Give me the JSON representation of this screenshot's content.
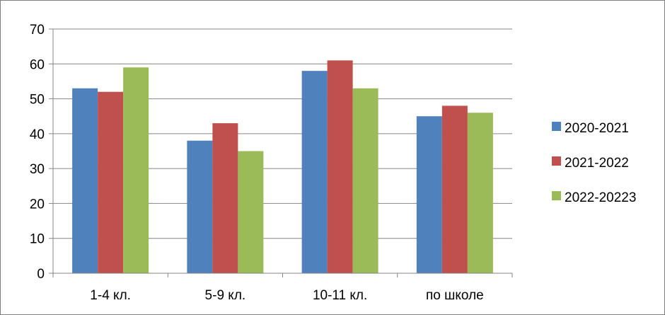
{
  "chart_data": {
    "type": "bar",
    "categories": [
      "1-4 кл.",
      "5-9 кл.",
      "10-11 кл.",
      "по школе"
    ],
    "series": [
      {
        "name": "2020-2021",
        "color": "#4F81BD",
        "values": [
          53,
          38,
          58,
          45
        ]
      },
      {
        "name": "2021-2022",
        "color": "#C0504D",
        "values": [
          52,
          43,
          61,
          48
        ]
      },
      {
        "name": "2022-20223",
        "color": "#9BBB59",
        "values": [
          59,
          35,
          53,
          46
        ]
      }
    ],
    "title": "",
    "xlabel": "",
    "ylabel": "",
    "ylim": [
      0,
      70
    ],
    "yticks": [
      0,
      10,
      20,
      30,
      40,
      50,
      60,
      70
    ],
    "grid": true,
    "legend_position": "right"
  }
}
